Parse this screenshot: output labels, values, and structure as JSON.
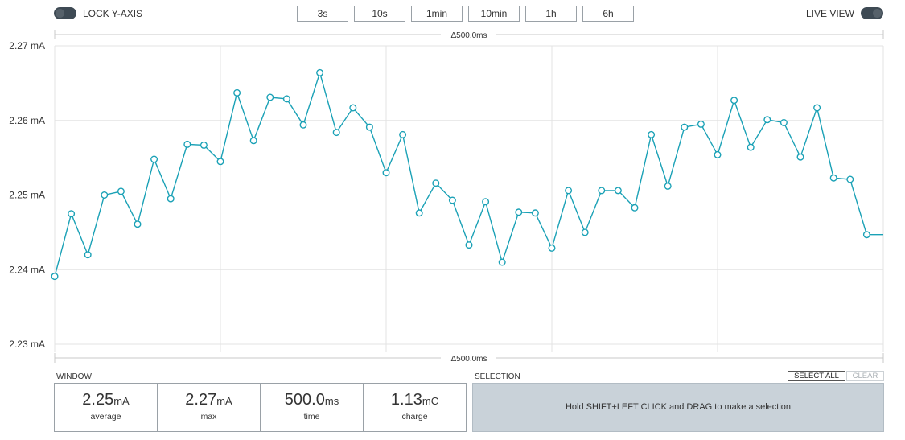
{
  "toolbar": {
    "lock_label": "LOCK Y-AXIS",
    "live_label": "LIVE VIEW",
    "ranges": [
      "3s",
      "10s",
      "1min",
      "10min",
      "1h",
      "6h"
    ]
  },
  "colors": {
    "series": "#1aa1b6",
    "grid": "#e3e3e3",
    "toggle": "#3e4a54",
    "selection_bg": "#c9d2d9"
  },
  "chart_data": {
    "type": "line",
    "ylabel_unit": "mA",
    "ylim": [
      2.23,
      2.27
    ],
    "yticks": [
      "2.27 mA",
      "2.26 mA",
      "2.25 mA",
      "2.24 mA",
      "2.23 mA"
    ],
    "span_top": "Δ500.0ms",
    "span_bottom": "Δ500.0ms",
    "grid": true,
    "series": [
      {
        "values": [
          2.2391,
          2.2475,
          2.242,
          2.25,
          2.2505,
          2.2461,
          2.2548,
          2.2495,
          2.2568,
          2.2567,
          2.2545,
          2.2637,
          2.2573,
          2.2631,
          2.2629,
          2.2594,
          2.2664,
          2.2584,
          2.2617,
          2.2591,
          2.253,
          2.2581,
          2.2476,
          2.2516,
          2.2493,
          2.2433,
          2.2491,
          2.241,
          2.2477,
          2.2476,
          2.2429,
          2.2506,
          2.245,
          2.2506,
          2.2506,
          2.2483,
          2.2581,
          2.2512,
          2.2591,
          2.2595,
          2.2554,
          2.2627,
          2.2564,
          2.2601,
          2.2597,
          2.2551,
          2.2617,
          2.2523,
          2.2521,
          2.2447,
          2.2447
        ]
      }
    ]
  },
  "window": {
    "label": "WINDOW",
    "stats": [
      {
        "value": "2.25",
        "unit": "mA",
        "name": "average"
      },
      {
        "value": "2.27",
        "unit": "mA",
        "name": "max"
      },
      {
        "value": "500.0",
        "unit": "ms",
        "name": "time"
      },
      {
        "value": "1.13",
        "unit": "mC",
        "name": "charge"
      }
    ]
  },
  "selection": {
    "label": "SELECTION",
    "select_all": "SELECT ALL",
    "clear": "CLEAR",
    "hint": "Hold SHIFT+LEFT CLICK and DRAG to make a selection"
  }
}
